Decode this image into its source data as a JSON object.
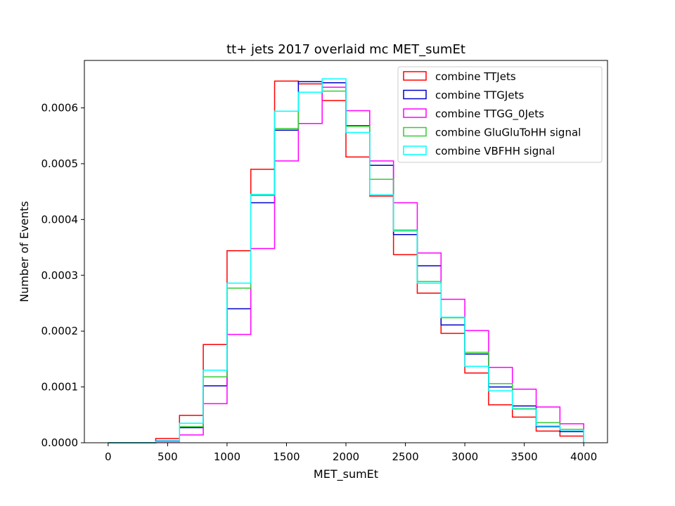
{
  "chart_data": {
    "type": "histogram-step",
    "title": "tt+ jets 2017 overlaid mc MET_sumEt",
    "xlabel": "MET_sumEt",
    "ylabel": "Number of Events",
    "xlim": [
      -200,
      4200
    ],
    "ylim": [
      0,
      0.000685
    ],
    "xticks": [
      0,
      500,
      1000,
      1500,
      2000,
      2500,
      3000,
      3500,
      4000
    ],
    "xtick_labels": [
      "0",
      "500",
      "1000",
      "1500",
      "2000",
      "2500",
      "3000",
      "3500",
      "4000"
    ],
    "yticks": [
      0,
      0.0001,
      0.0002,
      0.0003,
      0.0004,
      0.0005,
      0.0006
    ],
    "ytick_labels": [
      "0.0000",
      "0.0001",
      "0.0002",
      "0.0003",
      "0.0004",
      "0.0005",
      "0.0006"
    ],
    "bin_edges": [
      0,
      200,
      400,
      600,
      800,
      1000,
      1200,
      1400,
      1600,
      1800,
      2000,
      2200,
      2400,
      2600,
      2800,
      3000,
      3200,
      3400,
      3600,
      3800,
      4000
    ],
    "legend_position": "top-right",
    "series": [
      {
        "name": "combine TTJets",
        "color": "#ff0000",
        "values": [
          0.0,
          0.0,
          7.5e-06,
          4.9e-05,
          0.000176,
          0.000344,
          0.00049,
          0.000648,
          0.000643,
          0.000613,
          0.000512,
          0.000442,
          0.000337,
          0.000268,
          0.000196,
          0.000125,
          6.8e-05,
          4.6e-05,
          2.1e-05,
          1.2e-05
        ]
      },
      {
        "name": "combine TTGJets",
        "color": "#0000cc",
        "values": [
          0.0,
          0.0,
          3.5e-06,
          2.7e-05,
          0.000102,
          0.00024,
          0.00043,
          0.00056,
          0.000647,
          0.000645,
          0.000568,
          0.000497,
          0.000373,
          0.000317,
          0.000211,
          0.000159,
          0.0001,
          6.6e-05,
          2.9e-05,
          2e-05
        ]
      },
      {
        "name": "combine TTGG_0Jets",
        "color": "#ff00ff",
        "values": [
          0.0,
          0.0,
          2e-06,
          1.4e-05,
          7e-05,
          0.000194,
          0.000348,
          0.000505,
          0.000572,
          0.000637,
          0.000595,
          0.000505,
          0.00043,
          0.00034,
          0.000257,
          0.000201,
          0.000135,
          9.6e-05,
          6.4e-05,
          3.4e-05
        ]
      },
      {
        "name": "combine GluGluToHH signal",
        "color": "#33cc33",
        "values": [
          0.0,
          0.0,
          2.5e-06,
          2.9e-05,
          0.000118,
          0.000277,
          0.000443,
          0.000563,
          0.000628,
          0.00063,
          0.000567,
          0.000472,
          0.000381,
          0.000289,
          0.000224,
          0.000162,
          0.000106,
          6.1e-05,
          3.6e-05,
          2.4e-05
        ]
      },
      {
        "name": "combine VBFHH signal",
        "color": "#00ffff",
        "values": [
          0.0,
          0.0,
          3e-06,
          3.5e-05,
          0.00013,
          0.000286,
          0.000445,
          0.000594,
          0.000628,
          0.000652,
          0.000556,
          0.000444,
          0.000379,
          0.000286,
          0.000225,
          0.000137,
          9.3e-05,
          6e-05,
          3e-05,
          2.3e-05
        ]
      }
    ]
  }
}
